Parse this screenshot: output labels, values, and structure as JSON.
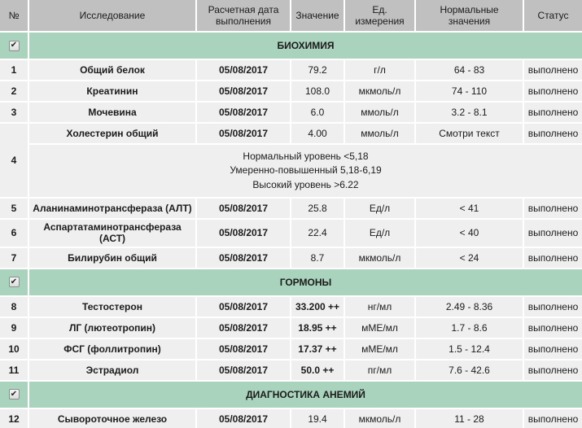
{
  "colors": {
    "section_bg": "#a9d3bd",
    "header_bg": "#c0c0c0",
    "row_bg": "#efefef",
    "separator": "#ffffff",
    "text": "#1b1b1b"
  },
  "icons": {
    "checkbox_check": "✔"
  },
  "table": {
    "columns": [
      "№",
      "Исследование",
      "Расчетная дата выполнения",
      "Значение",
      "Ед. измерения",
      "Нормальные значения",
      "Статус"
    ],
    "sections": [
      {
        "title": "БИОХИМИЯ",
        "checkbox_checked": true,
        "rows": [
          {
            "num": "1",
            "name": "Общий белок",
            "date": "05/08/2017",
            "value": "79.2",
            "value_bold": false,
            "unit": "г/л",
            "normal": "64 - 83",
            "status": "выполнено"
          },
          {
            "num": "2",
            "name": "Креатинин",
            "date": "05/08/2017",
            "value": "108.0",
            "value_bold": false,
            "unit": "мкмоль/л",
            "normal": "74 - 110",
            "status": "выполнено"
          },
          {
            "num": "3",
            "name": "Мочевина",
            "date": "05/08/2017",
            "value": "6.0",
            "value_bold": false,
            "unit": "ммоль/л",
            "normal": "3.2 - 8.1",
            "status": "выполнено"
          },
          {
            "num": "4",
            "name": "Холестерин общий",
            "date": "05/08/2017",
            "value": "4.00",
            "value_bold": false,
            "unit": "ммоль/л",
            "normal": "Смотри текст",
            "status": "выполнено",
            "comment": [
              "Нормальный уровень <5,18",
              "Умеренно-повышенный 5,18-6,19",
              "Высокий уровень >6.22"
            ]
          },
          {
            "num": "5",
            "name": "Аланинаминотрансфераза (АЛТ)",
            "date": "05/08/2017",
            "value": "25.8",
            "value_bold": false,
            "unit": "Ед/л",
            "normal": "< 41",
            "status": "выполнено"
          },
          {
            "num": "6",
            "name": "Аспартатаминотрансфераза (АСТ)",
            "date": "05/08/2017",
            "value": "22.4",
            "value_bold": false,
            "unit": "Ед/л",
            "normal": "< 40",
            "status": "выполнено"
          },
          {
            "num": "7",
            "name": "Билирубин общий",
            "date": "05/08/2017",
            "value": "8.7",
            "value_bold": false,
            "unit": "мкмоль/л",
            "normal": "< 24",
            "status": "выполнено"
          }
        ]
      },
      {
        "title": "ГОРМОНЫ",
        "checkbox_checked": true,
        "rows": [
          {
            "num": "8",
            "name": "Тестостерон",
            "date": "05/08/2017",
            "value": "33.200 ++",
            "value_bold": true,
            "unit": "нг/мл",
            "normal": "2.49 - 8.36",
            "status": "выполнено"
          },
          {
            "num": "9",
            "name": "ЛГ (лютеотропин)",
            "date": "05/08/2017",
            "value": "18.95 ++",
            "value_bold": true,
            "unit": "мМЕ/мл",
            "normal": "1.7 - 8.6",
            "status": "выполнено"
          },
          {
            "num": "10",
            "name": "ФСГ (фоллитропин)",
            "date": "05/08/2017",
            "value": "17.37 ++",
            "value_bold": true,
            "unit": "мМЕ/мл",
            "normal": "1.5 - 12.4",
            "status": "выполнено"
          },
          {
            "num": "11",
            "name": "Эстрадиол",
            "date": "05/08/2017",
            "value": "50.0 ++",
            "value_bold": true,
            "unit": "пг/мл",
            "normal": "7.6 - 42.6",
            "status": "выполнено"
          }
        ]
      },
      {
        "title": "ДИАГНОСТИКА АНЕМИЙ",
        "checkbox_checked": true,
        "rows": [
          {
            "num": "12",
            "name": "Сывороточное железо",
            "date": "05/08/2017",
            "value": "19.4",
            "value_bold": false,
            "unit": "мкмоль/л",
            "normal": "11 - 28",
            "status": "выполнено"
          }
        ]
      }
    ]
  }
}
